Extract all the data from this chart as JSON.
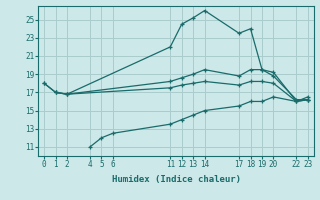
{
  "xlabel": "Humidex (Indice chaleur)",
  "bg_color": "#cce8e8",
  "grid_color": "#aacccc",
  "line_color": "#1a6b6b",
  "xlim": [
    -0.5,
    23.5
  ],
  "ylim": [
    10.0,
    26.5
  ],
  "xticks": [
    0,
    1,
    2,
    4,
    5,
    6,
    11,
    12,
    13,
    14,
    17,
    18,
    19,
    20,
    22,
    23
  ],
  "yticks": [
    11,
    13,
    15,
    17,
    19,
    21,
    23,
    25
  ],
  "series": [
    {
      "x": [
        0,
        1,
        2,
        11,
        12,
        13,
        14,
        17,
        18,
        19,
        20,
        22,
        23
      ],
      "y": [
        18.0,
        17.0,
        16.8,
        22.0,
        24.5,
        25.2,
        26.0,
        23.5,
        24.0,
        19.5,
        18.8,
        16.2,
        16.2
      ]
    },
    {
      "x": [
        0,
        1,
        2,
        11,
        12,
        13,
        14,
        17,
        18,
        19,
        20,
        22,
        23
      ],
      "y": [
        18.0,
        17.0,
        16.8,
        18.2,
        18.6,
        19.0,
        19.5,
        18.8,
        19.5,
        19.5,
        19.2,
        16.0,
        16.2
      ]
    },
    {
      "x": [
        1,
        2,
        11,
        12,
        13,
        14,
        17,
        18,
        19,
        20,
        22,
        23
      ],
      "y": [
        17.0,
        16.8,
        17.5,
        17.8,
        18.0,
        18.2,
        17.8,
        18.2,
        18.2,
        18.0,
        16.0,
        16.2
      ]
    },
    {
      "x": [
        4,
        5,
        6,
        11,
        12,
        13,
        14,
        17,
        18,
        19,
        20,
        22,
        23
      ],
      "y": [
        11.0,
        12.0,
        12.5,
        13.5,
        14.0,
        14.5,
        15.0,
        15.5,
        16.0,
        16.0,
        16.5,
        16.0,
        16.5
      ]
    }
  ]
}
